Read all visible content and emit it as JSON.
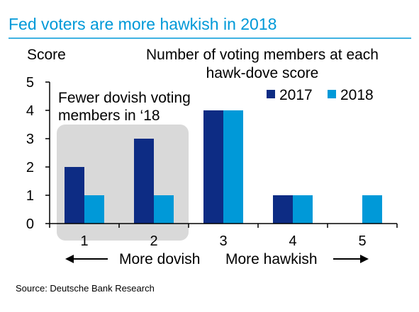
{
  "header": {
    "title": "Fed voters are more hawkish in 2018",
    "accent_color": "#0099d8"
  },
  "footer": {
    "source": "Source: Deutsche Bank Research"
  },
  "chart_data": {
    "type": "bar",
    "title": "Number of voting members at each hawk-dove score",
    "title_lines": [
      "Number of voting members at each",
      "hawk-dove score"
    ],
    "ylabel": "Score",
    "xlabel": "",
    "categories": [
      "1",
      "2",
      "3",
      "4",
      "5"
    ],
    "ylim": [
      0,
      5
    ],
    "yticks": [
      0,
      1,
      2,
      3,
      4,
      5
    ],
    "grid": false,
    "legend_position": "top-right",
    "series": [
      {
        "name": "2017",
        "color": "#0d2c84",
        "values": [
          2,
          3,
          4,
          1,
          0
        ]
      },
      {
        "name": "2018",
        "color": "#0099d8",
        "values": [
          1,
          1,
          4,
          1,
          1
        ]
      }
    ],
    "annotations": {
      "highlight_text_lines": [
        "Fewer dovish voting",
        "members in ‘18"
      ],
      "highlight_categories": [
        "1",
        "2"
      ],
      "highlight_color": "#d9d9d9",
      "left_direction": "More dovish",
      "right_direction": "More hawkish"
    }
  }
}
